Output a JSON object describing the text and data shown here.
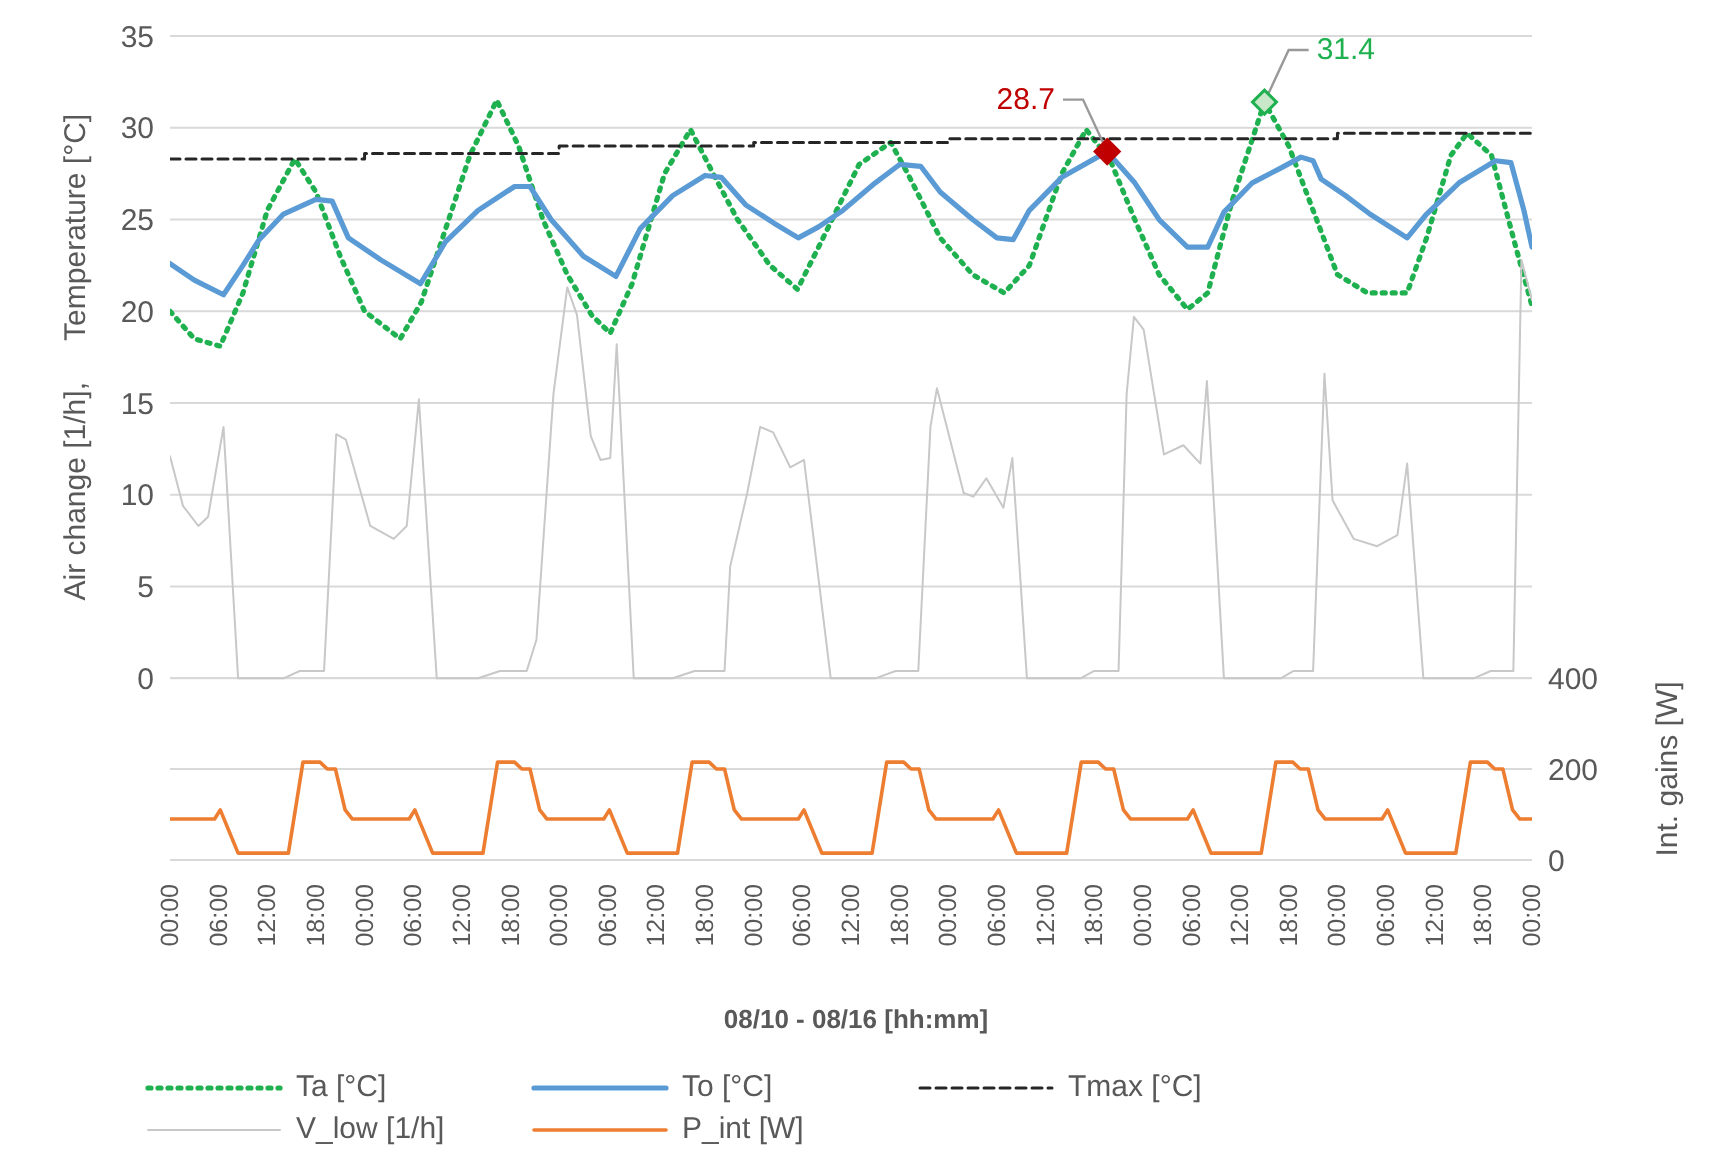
{
  "chart_data": {
    "type": "line",
    "xlabel": "08/10 - 08/16 [hh:mm]",
    "ylabel": "Air change [1/h],     Temperature [°C]",
    "y2label": "Int. gains [W]",
    "xlim": [
      "--08-10T00:00",
      "--08-17T00:00"
    ],
    "xticks": [
      {
        "value": "--08-10T00:00",
        "label": "00:00"
      },
      {
        "value": "--08-10T06:00",
        "label": "06:00"
      },
      {
        "value": "--08-10T12:00",
        "label": "12:00"
      },
      {
        "value": "--08-10T18:00",
        "label": "18:00"
      },
      {
        "value": "--08-11T00:00",
        "label": "00:00"
      },
      {
        "value": "--08-11T06:00",
        "label": "06:00"
      },
      {
        "value": "--08-11T12:00",
        "label": "12:00"
      },
      {
        "value": "--08-11T18:00",
        "label": "18:00"
      },
      {
        "value": "--08-12T00:00",
        "label": "00:00"
      },
      {
        "value": "--08-12T06:00",
        "label": "06:00"
      },
      {
        "value": "--08-12T12:00",
        "label": "12:00"
      },
      {
        "value": "--08-12T18:00",
        "label": "18:00"
      },
      {
        "value": "--08-13T00:00",
        "label": "00:00"
      },
      {
        "value": "--08-13T06:00",
        "label": "06:00"
      },
      {
        "value": "--08-13T12:00",
        "label": "12:00"
      },
      {
        "value": "--08-13T18:00",
        "label": "18:00"
      },
      {
        "value": "--08-14T00:00",
        "label": "00:00"
      },
      {
        "value": "--08-14T06:00",
        "label": "06:00"
      },
      {
        "value": "--08-14T12:00",
        "label": "12:00"
      },
      {
        "value": "--08-14T18:00",
        "label": "18:00"
      },
      {
        "value": "--08-15T00:00",
        "label": "00:00"
      },
      {
        "value": "--08-15T06:00",
        "label": "06:00"
      },
      {
        "value": "--08-15T12:00",
        "label": "12:00"
      },
      {
        "value": "--08-15T18:00",
        "label": "18:00"
      },
      {
        "value": "--08-16T00:00",
        "label": "00:00"
      },
      {
        "value": "--08-16T06:00",
        "label": "06:00"
      },
      {
        "value": "--08-16T12:00",
        "label": "12:00"
      },
      {
        "value": "--08-16T18:00",
        "label": "18:00"
      },
      {
        "value": "--08-17T00:00",
        "label": "00:00"
      }
    ],
    "ylim": [
      -9.9,
      35
    ],
    "yticks": [
      0,
      5,
      10,
      15,
      20,
      25,
      30,
      35
    ],
    "y2lim": [
      0,
      1810
    ],
    "y2ticks": [
      0,
      200,
      400
    ],
    "grid": "y",
    "legend": "bottom",
    "marker": "none",
    "series": [
      {
        "name": "Ta [°C]",
        "color": "#1fb04f",
        "line_style": "dotted",
        "x": [
          "--08-10T00:00",
          "--08-10T03:00",
          "--08-10T06:12",
          "--08-10T09:00",
          "--08-10T12:00",
          "--08-10T15:24",
          "--08-10T18:00",
          "--08-10T21:00",
          "--08-11T00:00",
          "--08-11T04:24",
          "--08-11T07:00",
          "--08-11T10:00",
          "--08-11T13:00",
          "--08-11T16:18",
          "--08-11T19:00",
          "--08-11T22:00",
          "--08-12T01:00",
          "--08-12T04:00",
          "--08-12T06:18",
          "--08-12T09:00",
          "--08-12T13:00",
          "--08-12T16:12",
          "--08-12T19:00",
          "--08-12T22:00",
          "--08-13T02:00",
          "--08-13T05:24",
          "--08-13T08:00",
          "--08-13T13:00",
          "--08-13T16:54",
          "--08-13T19:00",
          "--08-13T23:00",
          "--08-14T03:00",
          "--08-14T06:54",
          "--08-14T10:00",
          "--08-14T14:00",
          "--08-14T17:00",
          "--08-14T20:00",
          "--08-14T23:00",
          "--08-15T02:00",
          "--08-15T05:30",
          "--08-15T08:00",
          "--08-15T11:00",
          "--08-15T15:00",
          "--08-15T18:00",
          "--08-15T21:00",
          "--08-16T00:00",
          "--08-16T03:42",
          "--08-16T08:36",
          "--08-16T11:00",
          "--08-16T14:00",
          "--08-16T16:00",
          "--08-16T19:00",
          "--08-16T22:00",
          "--08-17T00:00"
        ],
        "values": [
          20,
          18.5,
          18.1,
          21,
          25.5,
          28.3,
          26.5,
          23,
          20,
          18.5,
          20.5,
          24.5,
          28.5,
          31.5,
          29,
          25,
          22,
          19.8,
          18.8,
          21.5,
          27.5,
          29.9,
          27.5,
          25,
          22.5,
          21.2,
          23.5,
          28,
          29.2,
          27.5,
          24,
          22,
          21,
          22.5,
          27.5,
          29.9,
          28.2,
          25,
          22,
          20.1,
          21,
          26,
          31.4,
          29,
          25.5,
          22,
          21,
          21,
          24,
          28.5,
          29.7,
          28.5,
          23.5,
          20.3
        ]
      },
      {
        "name": "To [°C]",
        "color": "#5b9bd5",
        "line_style": "solid",
        "x": [
          "--08-10T00:00",
          "--08-10T03:00",
          "--08-10T06:36",
          "--08-10T09:00",
          "--08-10T11:00",
          "--08-10T14:00",
          "--08-10T18:00",
          "--08-10T20:00",
          "--08-10T22:00",
          "--08-11T02:00",
          "--08-11T06:54",
          "--08-11T10:00",
          "--08-11T14:00",
          "--08-11T18:30",
          "--08-11T20:24",
          "--08-11T23:00",
          "--08-12T03:00",
          "--08-12T07:00",
          "--08-12T10:00",
          "--08-12T14:00",
          "--08-12T18:00",
          "--08-12T20:00",
          "--08-12T23:00",
          "--08-13T02:30",
          "--08-13T05:30",
          "--08-13T08:00",
          "--08-13T11:00",
          "--08-13T15:00",
          "--08-13T18:00",
          "--08-13T20:36",
          "--08-13T23:00",
          "--08-14T03:00",
          "--08-14T06:00",
          "--08-14T08:00",
          "--08-14T10:00",
          "--08-14T14:00",
          "--08-14T19:36",
          "--08-14T23:00",
          "--08-15T02:00",
          "--08-15T05:30",
          "--08-15T08:00",
          "--08-15T10:00",
          "--08-15T13:30",
          "--08-15T17:00",
          "--08-15T19:30",
          "--08-15T21:00",
          "--08-15T22:00",
          "--08-16T01:00",
          "--08-16T04:00",
          "--08-16T08:36",
          "--08-16T11:00",
          "--08-16T15:00",
          "--08-16T19:30",
          "--08-16T21:24",
          "--08-16T23:00",
          "--08-17T00:00"
        ],
        "values": [
          22.6,
          21.7,
          20.9,
          22.5,
          23.9,
          25.3,
          26.1,
          26,
          24,
          22.8,
          21.5,
          23.8,
          25.5,
          26.8,
          26.8,
          25,
          23,
          21.9,
          24.5,
          26.3,
          27.4,
          27.3,
          25.8,
          24.8,
          24,
          24.6,
          25.5,
          27,
          28,
          27.9,
          26.5,
          25,
          24,
          23.9,
          25.5,
          27.3,
          28.7,
          27,
          25,
          23.5,
          23.5,
          25.4,
          27,
          27.8,
          28.4,
          28.2,
          27.2,
          26.3,
          25.3,
          24,
          25.3,
          27,
          28.2,
          28.1,
          25.5,
          23.5
        ]
      },
      {
        "name": "Tmax [°C]",
        "color": "#262626",
        "type": "step",
        "line_style": "dashed",
        "x": [
          "--08-10T00:00",
          "--08-11T00:00",
          "--08-12T00:00",
          "--08-13T00:00",
          "--08-14T00:00",
          "--08-15T00:00",
          "--08-16T00:00",
          "--08-17T00:00"
        ],
        "values": [
          28.3,
          28.6,
          29,
          29.2,
          29.4,
          29.4,
          29.7,
          29.7
        ]
      },
      {
        "name": "V_low [1/h]",
        "color": "#c8c8c8",
        "line_style": "solid",
        "x": [
          "--08-10T00:00",
          "--08-10T01:36",
          "--08-10T03:30",
          "--08-10T04:42",
          "--08-10T06:36",
          "--08-10T08:24",
          "--08-10T14:00",
          "--08-10T16:00",
          "--08-10T19:00",
          "--08-10T20:30",
          "--08-10T21:42",
          "--08-11T00:42",
          "--08-11T03:36",
          "--08-11T05:12",
          "--08-11T06:42",
          "--08-11T08:54",
          "--08-11T14:00",
          "--08-11T16:42",
          "--08-11T20:00",
          "--08-11T21:12",
          "--08-11T23:18",
          "--08-12T01:00",
          "--08-12T02:12",
          "--08-12T03:54",
          "--08-12T05:06",
          "--08-12T06:18",
          "--08-12T07:06",
          "--08-12T09:12",
          "--08-12T14:00",
          "--08-12T16:42",
          "--08-12T20:24",
          "--08-12T21:06",
          "--08-12T23:12",
          "--08-13T00:48",
          "--08-13T02:24",
          "--08-13T04:30",
          "--08-13T06:12",
          "--08-13T09:30",
          "--08-13T15:00",
          "--08-13T17:30",
          "--08-13T20:18",
          "--08-13T21:48",
          "--08-13T22:36",
          "--08-14T01:54",
          "--08-14T03:06",
          "--08-14T04:42",
          "--08-14T06:48",
          "--08-14T07:54",
          "--08-14T09:42",
          "--08-14T16:18",
          "--08-14T18:00",
          "--08-14T21:00",
          "--08-14T22:00",
          "--08-14T22:54",
          "--08-15T00:06",
          "--08-15T02:36",
          "--08-15T05:00",
          "--08-15T07:06",
          "--08-15T07:54",
          "--08-15T10:00",
          "--08-15T17:00",
          "--08-15T18:36",
          "--08-15T21:00",
          "--08-15T22:24",
          "--08-15T23:24",
          "--08-16T02:00",
          "--08-16T04:54",
          "--08-16T07:24",
          "--08-16T08:36",
          "--08-16T10:36",
          "--08-16T16:48",
          "--08-16T18:54",
          "--08-16T21:42",
          "--08-16T22:42",
          "--08-17T00:00"
        ],
        "values": [
          12.1,
          9.4,
          8.3,
          8.8,
          13.7,
          0,
          0,
          0.4,
          0.4,
          13.3,
          13,
          8.3,
          7.6,
          8.3,
          15.2,
          0,
          0,
          0.4,
          0.4,
          2.1,
          15.5,
          21.3,
          19.8,
          13.2,
          11.9,
          12,
          18.2,
          0,
          0,
          0.4,
          0.4,
          6.1,
          10.1,
          13.7,
          13.4,
          11.5,
          11.9,
          0,
          0,
          0.4,
          0.4,
          13.7,
          15.8,
          10.1,
          9.9,
          10.9,
          9.3,
          12,
          0,
          0,
          0.4,
          0.4,
          15.5,
          19.7,
          19,
          12.2,
          12.7,
          11.7,
          16.2,
          0,
          0,
          0.4,
          0.4,
          16.6,
          9.7,
          7.6,
          7.2,
          7.8,
          11.7,
          0,
          0,
          0.4,
          0.4,
          22.8,
          20.6
        ]
      },
      {
        "name": "P_int [W]",
        "color": "#ed7d31",
        "line_style": "solid",
        "axis": "y2",
        "x": [
          "--08-10T00:00",
          "--08-10T05:30",
          "--08-10T06:12",
          "--08-10T08:24",
          "--08-10T14:36",
          "--08-10T16:24",
          "--08-10T18:30",
          "--08-10T19:24",
          "--08-10T20:24",
          "--08-10T21:36",
          "--08-10T22:30",
          "--08-11T00:00",
          "--08-11T05:30",
          "--08-11T06:12",
          "--08-11T08:24",
          "--08-11T14:36",
          "--08-11T16:24",
          "--08-11T18:30",
          "--08-11T19:24",
          "--08-11T20:24",
          "--08-11T21:36",
          "--08-11T22:30",
          "--08-12T00:00",
          "--08-12T05:30",
          "--08-12T06:12",
          "--08-12T08:24",
          "--08-12T14:36",
          "--08-12T16:24",
          "--08-12T18:30",
          "--08-12T19:24",
          "--08-12T20:24",
          "--08-12T21:36",
          "--08-12T22:30",
          "--08-13T00:00",
          "--08-13T05:30",
          "--08-13T06:12",
          "--08-13T08:24",
          "--08-13T14:36",
          "--08-13T16:24",
          "--08-13T18:30",
          "--08-13T19:24",
          "--08-13T20:24",
          "--08-13T21:36",
          "--08-13T22:30",
          "--08-14T00:00",
          "--08-14T05:30",
          "--08-14T06:12",
          "--08-14T08:24",
          "--08-14T14:36",
          "--08-14T16:24",
          "--08-14T18:30",
          "--08-14T19:24",
          "--08-14T20:24",
          "--08-14T21:36",
          "--08-14T22:30",
          "--08-15T00:00",
          "--08-15T05:30",
          "--08-15T06:12",
          "--08-15T08:24",
          "--08-15T14:36",
          "--08-15T16:24",
          "--08-15T18:30",
          "--08-15T19:24",
          "--08-15T20:24",
          "--08-15T21:36",
          "--08-15T22:30",
          "--08-16T00:00",
          "--08-16T05:30",
          "--08-16T06:12",
          "--08-16T08:24",
          "--08-16T14:36",
          "--08-16T16:24",
          "--08-16T18:30",
          "--08-16T19:24",
          "--08-16T20:24",
          "--08-16T21:36",
          "--08-16T22:30",
          "--08-17T00:00"
        ],
        "values": [
          90,
          90,
          110,
          15,
          15,
          215,
          215,
          200,
          200,
          110,
          90,
          90,
          90,
          110,
          15,
          15,
          215,
          215,
          200,
          200,
          110,
          90,
          90,
          90,
          110,
          15,
          15,
          215,
          215,
          200,
          200,
          110,
          90,
          90,
          90,
          110,
          15,
          15,
          215,
          215,
          200,
          200,
          110,
          90,
          90,
          90,
          110,
          15,
          15,
          215,
          215,
          200,
          200,
          110,
          90,
          90,
          90,
          110,
          15,
          15,
          215,
          215,
          200,
          200,
          110,
          90,
          90,
          90,
          110,
          15,
          15,
          215,
          215,
          200,
          200,
          110,
          90,
          90
        ]
      }
    ],
    "annotations": [
      {
        "text": "28.7",
        "x": "--08-14T19:36",
        "y": 28.7
      },
      {
        "text": "31.4",
        "x": "--08-15T15:00",
        "y": 31.4
      }
    ]
  }
}
